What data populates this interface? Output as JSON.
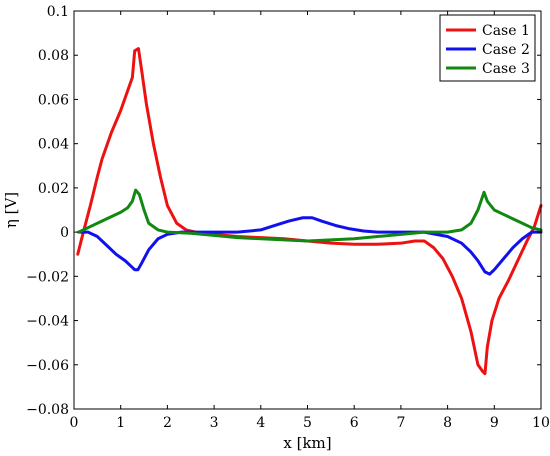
{
  "chart_data": {
    "type": "line",
    "title": "",
    "xlabel": "x [km]",
    "ylabel": "η [V]",
    "xlim": [
      0,
      10
    ],
    "ylim": [
      -0.08,
      0.1
    ],
    "xticks": [
      0,
      1,
      2,
      3,
      4,
      5,
      6,
      7,
      8,
      9,
      10
    ],
    "xtick_labels": [
      "0",
      "1",
      "2",
      "3",
      "4",
      "5",
      "6",
      "7",
      "8",
      "9",
      "10"
    ],
    "yticks": [
      -0.08,
      -0.06,
      -0.04,
      -0.02,
      0,
      0.02,
      0.04,
      0.06,
      0.08,
      0.1
    ],
    "ytick_labels": [
      "−0.08",
      "−0.06",
      "−0.04",
      "−0.02",
      "0",
      "0.02",
      "0.04",
      "0.06",
      "0.08",
      "0.1"
    ],
    "grid": false,
    "legend_position": "top-right",
    "series": [
      {
        "name": "Case 1",
        "color": "#ee1111",
        "x": [
          0.08,
          0.2,
          0.35,
          0.5,
          0.6,
          0.8,
          1.0,
          1.15,
          1.25,
          1.3,
          1.38,
          1.45,
          1.55,
          1.7,
          1.85,
          2.0,
          2.2,
          2.4,
          2.6,
          3.0,
          3.5,
          4.0,
          4.5,
          5.0,
          5.5,
          6.0,
          6.5,
          7.0,
          7.3,
          7.5,
          7.7,
          7.9,
          8.1,
          8.3,
          8.5,
          8.65,
          8.75,
          8.8,
          8.85,
          8.95,
          9.1,
          9.3,
          9.5,
          9.7,
          9.85,
          10.0
        ],
        "y": [
          -0.01,
          0.0,
          0.012,
          0.025,
          0.033,
          0.045,
          0.055,
          0.064,
          0.07,
          0.082,
          0.083,
          0.073,
          0.058,
          0.04,
          0.025,
          0.012,
          0.004,
          0.001,
          0.0,
          -0.001,
          -0.002,
          -0.0025,
          -0.003,
          -0.004,
          -0.005,
          -0.0055,
          -0.0055,
          -0.005,
          -0.004,
          -0.004,
          -0.007,
          -0.012,
          -0.02,
          -0.03,
          -0.045,
          -0.06,
          -0.063,
          -0.064,
          -0.052,
          -0.04,
          -0.03,
          -0.022,
          -0.013,
          -0.004,
          0.002,
          0.012
        ]
      },
      {
        "name": "Case 2",
        "color": "#1111ee",
        "x": [
          0.1,
          0.3,
          0.5,
          0.7,
          0.9,
          1.1,
          1.3,
          1.37,
          1.45,
          1.6,
          1.8,
          2.0,
          2.3,
          2.6,
          3.0,
          3.5,
          4.0,
          4.3,
          4.6,
          4.9,
          5.1,
          5.3,
          5.6,
          5.9,
          6.2,
          6.5,
          7.0,
          7.5,
          8.0,
          8.3,
          8.5,
          8.65,
          8.8,
          8.9,
          9.0,
          9.2,
          9.4,
          9.6,
          9.8,
          10.0
        ],
        "y": [
          0.0,
          0.0,
          -0.002,
          -0.006,
          -0.01,
          -0.013,
          -0.017,
          -0.017,
          -0.014,
          -0.008,
          -0.003,
          -0.001,
          0.0,
          0.0,
          0.0,
          0.0,
          0.001,
          0.003,
          0.005,
          0.0065,
          0.0065,
          0.005,
          0.003,
          0.0015,
          0.0005,
          0.0,
          0.0,
          0.0,
          -0.002,
          -0.005,
          -0.009,
          -0.013,
          -0.018,
          -0.019,
          -0.017,
          -0.012,
          -0.007,
          -0.003,
          0.0,
          0.0
        ]
      },
      {
        "name": "Case 3",
        "color": "#118811",
        "x": [
          0.1,
          0.3,
          0.5,
          0.8,
          1.0,
          1.15,
          1.25,
          1.32,
          1.4,
          1.5,
          1.6,
          1.8,
          2.0,
          2.5,
          3.0,
          3.5,
          4.0,
          4.5,
          5.0,
          5.5,
          6.0,
          6.5,
          7.0,
          7.5,
          8.0,
          8.3,
          8.5,
          8.65,
          8.78,
          8.85,
          9.0,
          9.2,
          9.4,
          9.6,
          9.8,
          10.0
        ],
        "y": [
          0.0,
          0.002,
          0.004,
          0.007,
          0.009,
          0.011,
          0.014,
          0.019,
          0.017,
          0.01,
          0.004,
          0.001,
          0.0,
          -0.0005,
          -0.0015,
          -0.0025,
          -0.003,
          -0.0035,
          -0.004,
          -0.0035,
          -0.003,
          -0.002,
          -0.001,
          0.0,
          0.0,
          0.001,
          0.004,
          0.01,
          0.018,
          0.014,
          0.01,
          0.008,
          0.006,
          0.004,
          0.002,
          0.001
        ]
      }
    ]
  }
}
